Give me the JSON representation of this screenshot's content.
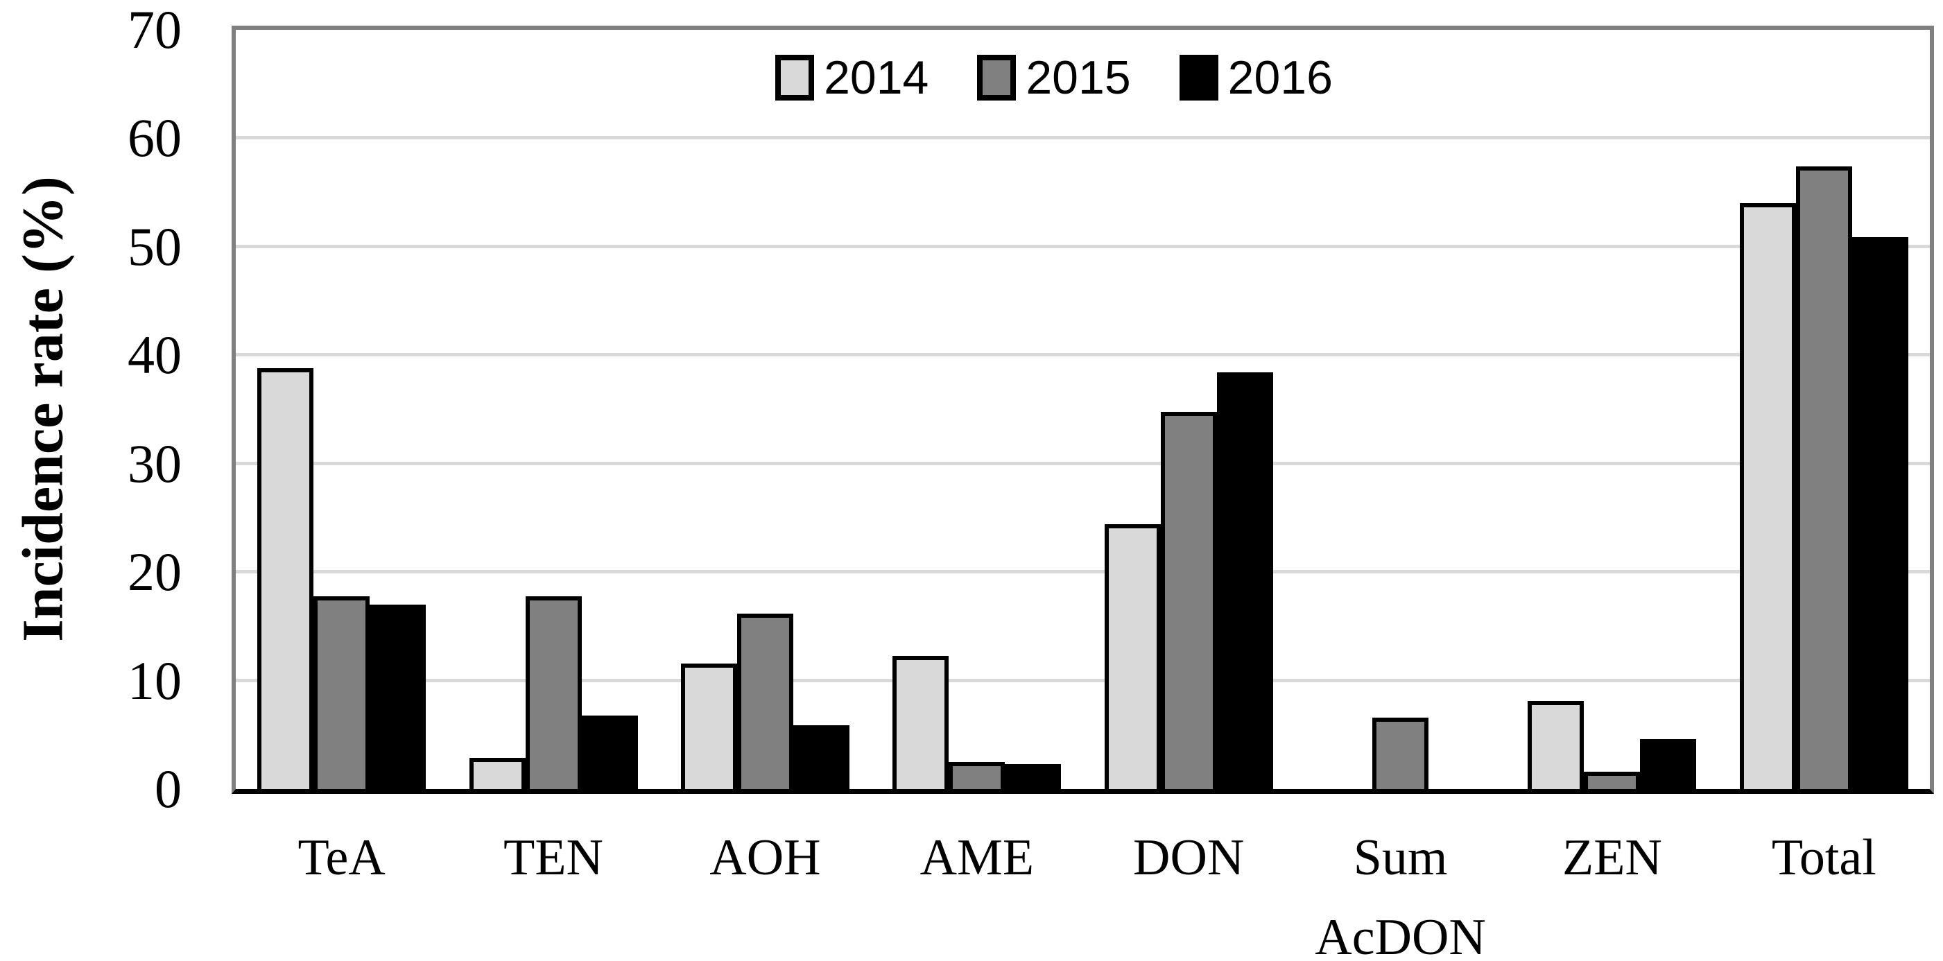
{
  "chart_data": {
    "type": "bar",
    "title": "",
    "xlabel": "",
    "ylabel": "Incidence rate (%)",
    "ylim": [
      0,
      70
    ],
    "ytick_step": 10,
    "grid": true,
    "legend_position": "top-center",
    "categories": [
      "TeA",
      "TEN",
      "AOH",
      "AME",
      "DON",
      "Sum AcDON",
      "ZEN",
      "Total"
    ],
    "series": [
      {
        "name": "2014",
        "color": "#d9d9d9",
        "values": [
          38.8,
          2.9,
          11.6,
          12.3,
          24.4,
          0,
          8.1,
          54.0
        ]
      },
      {
        "name": "2015",
        "color": "#808080",
        "values": [
          17.8,
          17.8,
          16.2,
          2.5,
          34.8,
          6.6,
          1.6,
          57.4
        ]
      },
      {
        "name": "2016",
        "color": "#000000",
        "values": [
          17.0,
          6.8,
          5.9,
          2.3,
          38.4,
          0,
          4.6,
          50.9
        ]
      }
    ],
    "colors": {
      "bar_border": "#000000",
      "gridline": "#d9d9d9",
      "plot_border": "#808080",
      "baseline": "#000000",
      "background": "#ffffff"
    }
  }
}
